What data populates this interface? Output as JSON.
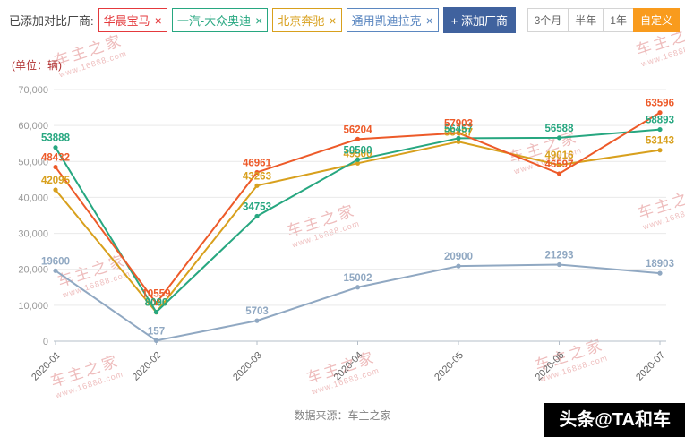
{
  "toolbar": {
    "label": "已添加对比厂商:",
    "tags": [
      {
        "label": "华晨宝马",
        "color": "#e4393c"
      },
      {
        "label": "一汽-大众奥迪",
        "color": "#27a780"
      },
      {
        "label": "北京奔驰",
        "color": "#d8a01d"
      },
      {
        "label": "通用凯迪拉克",
        "color": "#5b87c0"
      }
    ],
    "add_button": "+ 添加厂商",
    "ranges": [
      {
        "label": "3个月",
        "active": false
      },
      {
        "label": "半年",
        "active": false
      },
      {
        "label": "1年",
        "active": false
      },
      {
        "label": "自定义",
        "active": true
      }
    ]
  },
  "chart_data": {
    "type": "line",
    "unit_label": "(单位：辆)",
    "x": [
      "2020-01",
      "2020-02",
      "2020-03",
      "2020-04",
      "2020-05",
      "2020-06",
      "2020-07"
    ],
    "ylim": [
      0,
      70000
    ],
    "ytick_step": 10000,
    "yticks": [
      "0",
      "10,000",
      "20,000",
      "30,000",
      "40,000",
      "50,000",
      "60,000",
      "70,000"
    ],
    "grid": true,
    "legend_position": "none",
    "series": [
      {
        "name": "华晨宝马",
        "color": "#ed5a29",
        "values": [
          48432,
          10559,
          46961,
          56204,
          57903,
          46597,
          63596
        ]
      },
      {
        "name": "一汽-大众奥迪",
        "color": "#27a780",
        "values": [
          53888,
          8090,
          34753,
          50500,
          56457,
          56588,
          58893
        ]
      },
      {
        "name": "北京奔驰",
        "color": "#d8a01d",
        "values": [
          42095,
          8060,
          43263,
          49500,
          55487,
          49016,
          53143
        ]
      },
      {
        "name": "通用凯迪拉克",
        "color": "#90a8c2",
        "values": [
          19600,
          157,
          5703,
          15002,
          20900,
          21293,
          18903
        ]
      }
    ]
  },
  "watermark": {
    "line1": "车主之家",
    "line2": "www.16888.com"
  },
  "footer": {
    "source": "数据来源：车主之家",
    "badge": "头条@TA和车"
  }
}
